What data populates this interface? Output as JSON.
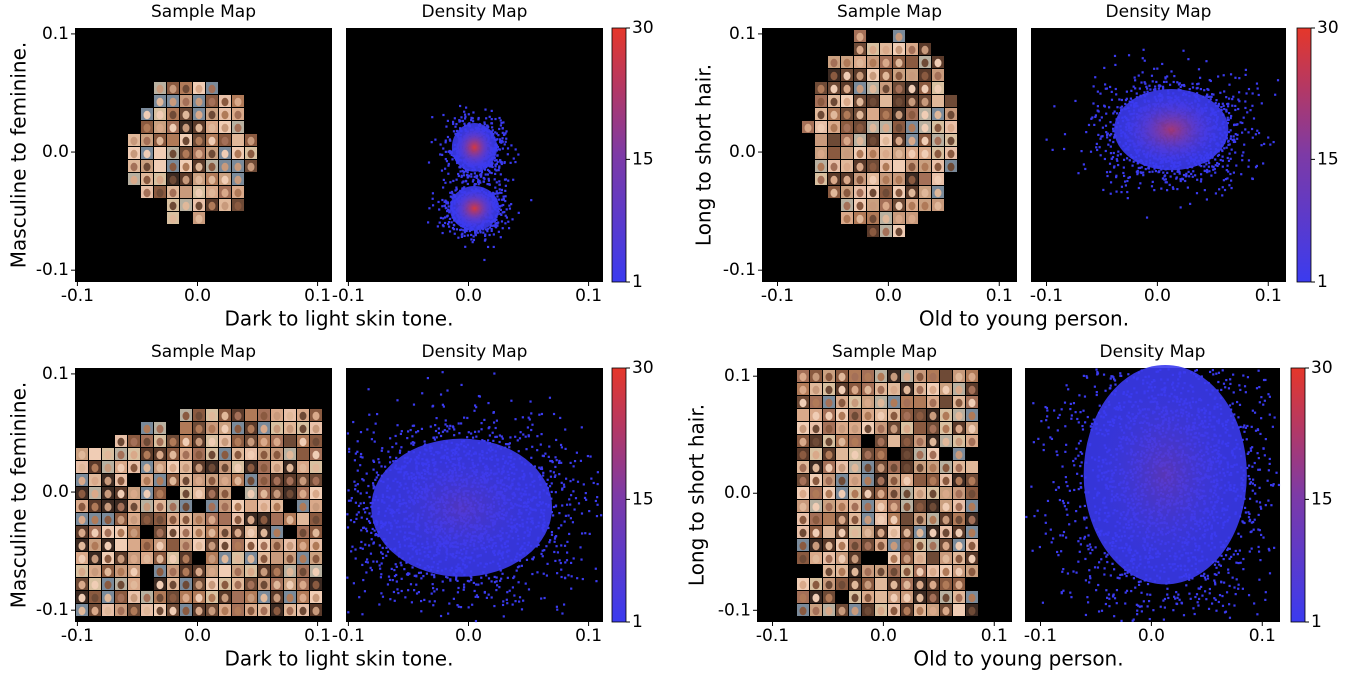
{
  "chart_data": [
    {
      "type": "sample-density-map",
      "titles": [
        "Sample Map",
        "Density Map"
      ],
      "xlabel": "Dark to light skin tone.",
      "ylabel": "Masculine to feminine.",
      "xlim": [
        -0.102,
        0.112
      ],
      "ylim": [
        -0.11,
        0.105
      ],
      "xticks": [
        -0.1,
        {
          "value": 0,
          "label": "0.0"
        },
        0.1
      ],
      "yticks": [
        -0.1,
        {
          "value": 0,
          "label": "0.0"
        },
        0.1
      ],
      "colorbar": {
        "lim": [
          1,
          30
        ],
        "ticks": [
          1,
          15,
          30
        ],
        "colors": [
          "#3b3bef",
          "#7d3aa6",
          "#e5372a"
        ]
      }
    },
    {
      "type": "sample-density-map",
      "titles": [
        "Sample Map",
        "Density Map"
      ],
      "xlabel": "Old to young person.",
      "ylabel": "Long to short hair.",
      "xlim": [
        -0.114,
        0.116
      ],
      "ylim": [
        -0.11,
        0.105
      ],
      "xticks": [
        -0.1,
        {
          "value": 0,
          "label": "0.0"
        },
        0.1
      ],
      "yticks": [
        -0.1,
        {
          "value": 0,
          "label": "0.0"
        },
        0.1
      ],
      "colorbar": {
        "lim": [
          1,
          30
        ],
        "ticks": [
          1,
          15,
          30
        ],
        "colors": [
          "#3b3bef",
          "#7d3aa6",
          "#e5372a"
        ]
      }
    },
    {
      "type": "sample-density-map",
      "titles": [
        "Sample Map",
        "Density Map"
      ],
      "xlabel": "Dark to light skin tone.",
      "ylabel": "Masculine to feminine.",
      "xlim": [
        -0.102,
        0.112
      ],
      "ylim": [
        -0.11,
        0.105
      ],
      "xticks": [
        -0.1,
        {
          "value": 0,
          "label": "0.0"
        },
        0.1
      ],
      "yticks": [
        -0.1,
        {
          "value": 0,
          "label": "0.0"
        },
        0.1
      ],
      "colorbar": {
        "lim": [
          1,
          30
        ],
        "ticks": [
          1,
          15,
          30
        ],
        "colors": [
          "#3b3bef",
          "#7d3aa6",
          "#e5372a"
        ]
      }
    },
    {
      "type": "sample-density-map",
      "titles": [
        "Sample Map",
        "Density Map"
      ],
      "xlabel": "Old to young person.",
      "ylabel": "Long to short hair.",
      "xlim": [
        -0.114,
        0.116
      ],
      "ylim": [
        -0.11,
        0.107
      ],
      "xticks": [
        -0.1,
        {
          "value": 0,
          "label": "0.0"
        },
        0.1
      ],
      "yticks": [
        -0.1,
        {
          "value": 0,
          "label": "0.0"
        },
        0.1
      ],
      "colorbar": {
        "lim": [
          1,
          30
        ],
        "ticks": [
          1,
          15,
          30
        ],
        "colors": [
          "#3b3bef",
          "#7d3aa6",
          "#e5372a"
        ]
      }
    }
  ]
}
